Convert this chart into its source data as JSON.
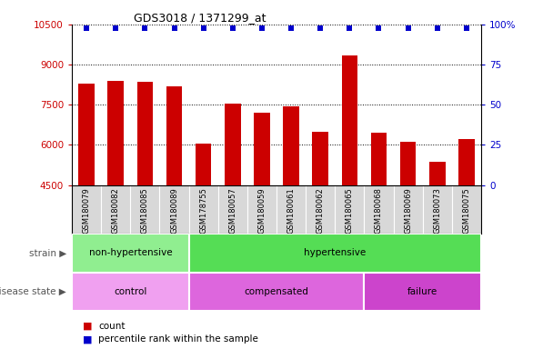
{
  "title": "GDS3018 / 1371299_at",
  "samples": [
    "GSM180079",
    "GSM180082",
    "GSM180085",
    "GSM180089",
    "GSM178755",
    "GSM180057",
    "GSM180059",
    "GSM180061",
    "GSM180062",
    "GSM180065",
    "GSM180068",
    "GSM180069",
    "GSM180073",
    "GSM180075"
  ],
  "counts": [
    8300,
    8400,
    8350,
    8200,
    6050,
    7550,
    7200,
    7450,
    6500,
    9350,
    6450,
    6100,
    5350,
    6200
  ],
  "ymin": 4500,
  "ymax": 10500,
  "yticks": [
    4500,
    6000,
    7500,
    9000,
    10500
  ],
  "y2ticks": [
    0,
    25,
    50,
    75,
    100
  ],
  "bar_color": "#cc0000",
  "dot_color": "#0000cc",
  "strain_groups": [
    {
      "label": "non-hypertensive",
      "start": 0,
      "end": 4,
      "color": "#90ee90"
    },
    {
      "label": "hypertensive",
      "start": 4,
      "end": 14,
      "color": "#55dd55"
    }
  ],
  "disease_groups": [
    {
      "label": "control",
      "start": 0,
      "end": 4,
      "color": "#f0a0f0"
    },
    {
      "label": "compensated",
      "start": 4,
      "end": 10,
      "color": "#dd66dd"
    },
    {
      "label": "failure",
      "start": 10,
      "end": 14,
      "color": "#cc44cc"
    }
  ],
  "legend_count_label": "count",
  "legend_percentile_label": "percentile rank within the sample",
  "bg_color": "#ffffff",
  "tick_label_color_left": "#cc0000",
  "tick_label_color_right": "#0000cc",
  "xtick_bg_color": "#d8d8d8",
  "grid_color": "#000000"
}
